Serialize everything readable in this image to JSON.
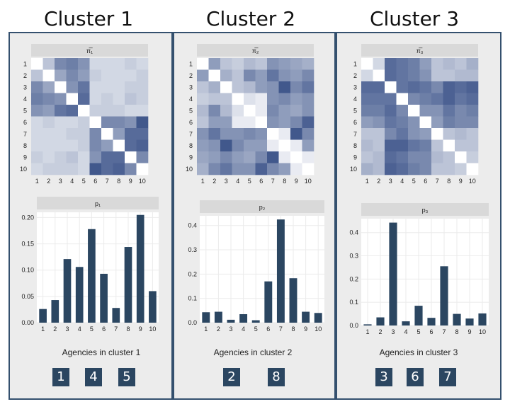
{
  "clusters": [
    {
      "title": "Cluster 1",
      "heatmap_strip": "π̅₁",
      "bar_strip": "p₁",
      "xcaption": "Agencies in cluster 1",
      "members": [
        "1",
        "4",
        "5"
      ],
      "heatmap_values": [
        [
          0,
          0.3,
          0.6,
          0.65,
          0.55,
          0.2,
          0.2,
          0.2,
          0.25,
          0.2
        ],
        [
          0.3,
          0,
          0.45,
          0.6,
          0.5,
          0.25,
          0.2,
          0.2,
          0.2,
          0.25
        ],
        [
          0.6,
          0.45,
          0,
          0.55,
          0.7,
          0.2,
          0.2,
          0.2,
          0.25,
          0.25
        ],
        [
          0.65,
          0.6,
          0.55,
          0,
          0.75,
          0.2,
          0.25,
          0.2,
          0.3,
          0.25
        ],
        [
          0.55,
          0.5,
          0.7,
          0.75,
          0,
          0.25,
          0.25,
          0.25,
          0.2,
          0.2
        ],
        [
          0.2,
          0.25,
          0.2,
          0.2,
          0.25,
          0,
          0.6,
          0.6,
          0.55,
          0.85
        ],
        [
          0.2,
          0.2,
          0.2,
          0.25,
          0.25,
          0.6,
          0,
          0.5,
          0.75,
          0.75
        ],
        [
          0.2,
          0.2,
          0.2,
          0.2,
          0.25,
          0.6,
          0.5,
          0,
          0.75,
          0.8
        ],
        [
          0.25,
          0.2,
          0.25,
          0.3,
          0.2,
          0.55,
          0.75,
          0.75,
          0,
          0.6
        ],
        [
          0.2,
          0.25,
          0.25,
          0.25,
          0.2,
          0.85,
          0.75,
          0.8,
          0.6,
          0
        ]
      ]
    },
    {
      "title": "Cluster 2",
      "heatmap_strip": "π̅₂",
      "bar_strip": "p₂",
      "xcaption": "Agencies in cluster 2",
      "members": [
        "2",
        "8"
      ],
      "heatmap_values": [
        [
          0,
          0.5,
          0.3,
          0.25,
          0.35,
          0.3,
          0.55,
          0.5,
          0.45,
          0.4
        ],
        [
          0.5,
          0,
          0.4,
          0.3,
          0.6,
          0.5,
          0.7,
          0.55,
          0.5,
          0.6
        ],
        [
          0.3,
          0.4,
          0,
          0.3,
          0.35,
          0.5,
          0.55,
          0.85,
          0.6,
          0.7
        ],
        [
          0.25,
          0.3,
          0.3,
          0,
          0.15,
          0.1,
          0.55,
          0.6,
          0.5,
          0.55
        ],
        [
          0.35,
          0.6,
          0.35,
          0.15,
          0,
          0.1,
          0.6,
          0.5,
          0.45,
          0.55
        ],
        [
          0.3,
          0.5,
          0.5,
          0.1,
          0.1,
          0,
          0.55,
          0.5,
          0.6,
          0.8
        ],
        [
          0.55,
          0.7,
          0.55,
          0.55,
          0.6,
          0.55,
          0,
          0.1,
          0.85,
          0.6
        ],
        [
          0.5,
          0.55,
          0.85,
          0.6,
          0.5,
          0.5,
          0.1,
          0,
          0.1,
          0.5
        ],
        [
          0.45,
          0.5,
          0.6,
          0.5,
          0.45,
          0.6,
          0.85,
          0.1,
          0,
          0.1
        ],
        [
          0.4,
          0.6,
          0.7,
          0.55,
          0.55,
          0.8,
          0.6,
          0.5,
          0.1,
          0
        ]
      ]
    },
    {
      "title": "Cluster 3",
      "heatmap_strip": "π̅₃",
      "bar_strip": "p₃",
      "xcaption": "Agencies in cluster 3",
      "members": [
        "3",
        "6",
        "7"
      ],
      "heatmap_values": [
        [
          0,
          0.2,
          0.75,
          0.7,
          0.65,
          0.5,
          0.3,
          0.35,
          0.3,
          0.4
        ],
        [
          0.2,
          0,
          0.75,
          0.7,
          0.65,
          0.55,
          0.3,
          0.3,
          0.35,
          0.35
        ],
        [
          0.75,
          0.75,
          0,
          0.7,
          0.75,
          0.7,
          0.6,
          0.8,
          0.75,
          0.8
        ],
        [
          0.7,
          0.7,
          0.7,
          0,
          0.6,
          0.65,
          0.7,
          0.8,
          0.7,
          0.75
        ],
        [
          0.65,
          0.65,
          0.75,
          0.6,
          0,
          0.55,
          0.55,
          0.7,
          0.6,
          0.65
        ],
        [
          0.5,
          0.55,
          0.7,
          0.65,
          0.55,
          0,
          0.5,
          0.65,
          0.6,
          0.6
        ],
        [
          0.3,
          0.3,
          0.6,
          0.7,
          0.55,
          0.5,
          0,
          0.3,
          0.35,
          0.3
        ],
        [
          0.35,
          0.3,
          0.8,
          0.8,
          0.7,
          0.65,
          0.3,
          0,
          0.3,
          0.3
        ],
        [
          0.3,
          0.35,
          0.75,
          0.7,
          0.6,
          0.6,
          0.35,
          0.3,
          0,
          0.25
        ],
        [
          0.4,
          0.35,
          0.8,
          0.75,
          0.65,
          0.6,
          0.3,
          0.3,
          0.25,
          0
        ]
      ]
    }
  ],
  "chart_data": [
    {
      "type": "bar",
      "title": "p₁",
      "xlabel": "Agencies in cluster 1",
      "categories": [
        "1",
        "2",
        "3",
        "4",
        "5",
        "6",
        "7",
        "8",
        "9",
        "10"
      ],
      "values": [
        0.026,
        0.043,
        0.121,
        0.106,
        0.178,
        0.093,
        0.028,
        0.144,
        0.205,
        0.06
      ],
      "ylim": [
        0,
        0.21
      ],
      "yticks": [
        "0.00",
        "0.05",
        "0.10",
        "0.15",
        "0.20"
      ],
      "ytick_values": [
        0,
        0.05,
        0.1,
        0.15,
        0.2
      ]
    },
    {
      "type": "bar",
      "title": "p₂",
      "xlabel": "Agencies in cluster 2",
      "categories": [
        "1",
        "2",
        "3",
        "4",
        "5",
        "6",
        "7",
        "8",
        "9",
        "10"
      ],
      "values": [
        0.043,
        0.045,
        0.012,
        0.035,
        0.01,
        0.17,
        0.425,
        0.183,
        0.045,
        0.04
      ],
      "ylim": [
        0,
        0.44
      ],
      "yticks": [
        "0.0",
        "0.1",
        "0.2",
        "0.3",
        "0.4"
      ],
      "ytick_values": [
        0,
        0.1,
        0.2,
        0.3,
        0.4
      ]
    },
    {
      "type": "bar",
      "title": "p₃",
      "xlabel": "Agencies in cluster 3",
      "categories": [
        "1",
        "2",
        "3",
        "4",
        "5",
        "6",
        "7",
        "8",
        "9",
        "10"
      ],
      "values": [
        0.005,
        0.035,
        0.443,
        0.018,
        0.085,
        0.033,
        0.255,
        0.05,
        0.03,
        0.052
      ],
      "ylim": [
        0,
        0.46
      ],
      "yticks": [
        "0.0",
        "0.1",
        "0.2",
        "0.3",
        "0.4"
      ],
      "ytick_values": [
        0,
        0.1,
        0.2,
        0.3,
        0.4
      ]
    }
  ],
  "colors": {
    "bar": "#2b4661",
    "strip": "#d9d9d9",
    "grid": "#ebebeb",
    "heat_low": "#ffffff",
    "heat_high": "#1f3a78",
    "panel_border": "#34506e",
    "panel_bg": "#ececec"
  }
}
